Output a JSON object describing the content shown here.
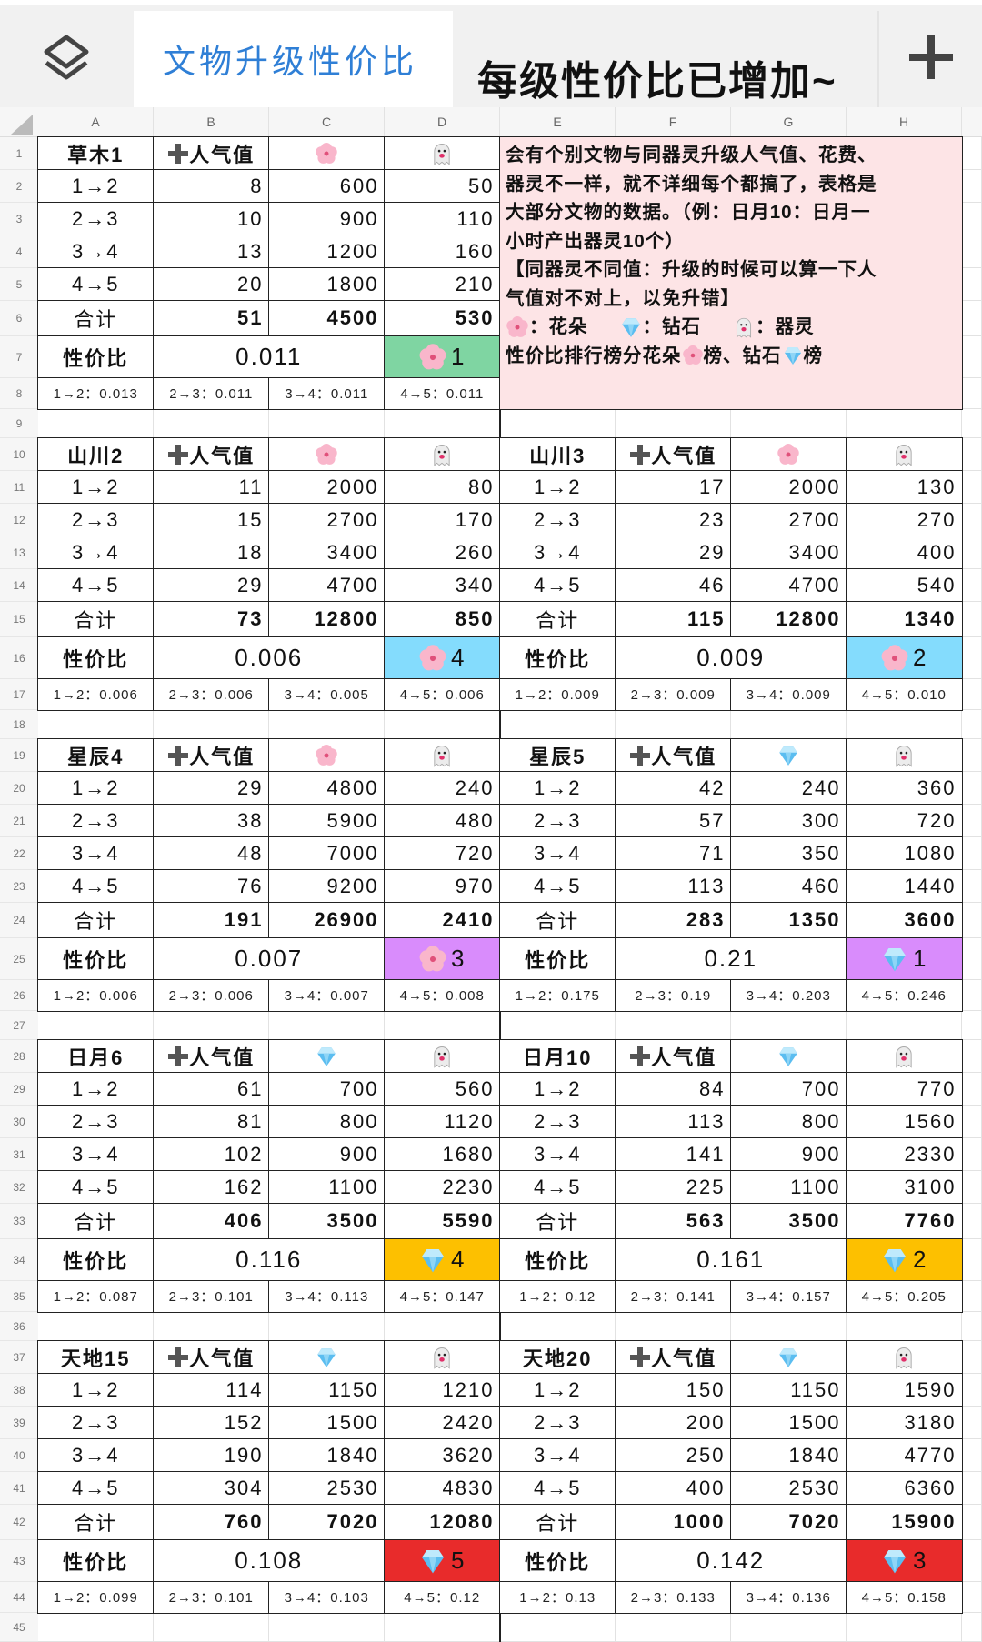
{
  "topbar": {
    "logo_icon": "layers-icon",
    "sheet_tab_title": "文物升级性价比",
    "overlay_note": "每级性价比已增加~",
    "add_icon": "plus-icon"
  },
  "columns": [
    "A",
    "B",
    "C",
    "D",
    "E",
    "F",
    "G",
    "H"
  ],
  "row_count": 45,
  "labels": {
    "popularity": "人气值",
    "popularity_icon": "plus-icon",
    "total": "合计",
    "ratio": "性价比",
    "spirit_icon": "ghost-icon"
  },
  "colors": {
    "note_bg": "#fde4e6",
    "title_blue": "#2f7fd6",
    "rank_green": "#7fd5a2",
    "rank_cyan": "#84dcfd",
    "rank_purple": "#d98cfc",
    "rank_orange": "#fdc000",
    "rank_red": "#e82b2b"
  },
  "note": {
    "lines": [
      "会有个别文物与同器灵升级人气值、花费、",
      "器灵不一样，就不详细每个都搞了，表格是",
      "大部分文物的数据。（例：日月10：日月一",
      "小时产出器灵10个）",
      "【同器灵不同值：升级的时候可以算一下人",
      "气值对不对上，以免升错】"
    ],
    "legend": {
      "flower": "：花朵",
      "diamond": "：钻石",
      "ghost": "：器灵"
    },
    "ranking": {
      "prefix": "性价比排行榜分花朵",
      "mid": "榜、钻石",
      "suffix": "榜"
    }
  },
  "blocks": [
    {
      "name": "草木1",
      "resource": "flower-icon",
      "rows": [
        {
          "level": "1→2",
          "pop": "8",
          "cost": "600",
          "spirit": "50"
        },
        {
          "level": "2→3",
          "pop": "10",
          "cost": "900",
          "spirit": "110"
        },
        {
          "level": "3→4",
          "pop": "13",
          "cost": "1200",
          "spirit": "160"
        },
        {
          "level": "4→5",
          "pop": "20",
          "cost": "1800",
          "spirit": "210"
        }
      ],
      "total": {
        "pop": "51",
        "cost": "4500",
        "spirit": "530"
      },
      "ratio": "0.011",
      "rank": {
        "icon": "flower-icon",
        "value": "1",
        "color": "#7fd5a2"
      },
      "per_level": [
        "1→2：0.013",
        "2→3：0.011",
        "3→4：0.011",
        "4→5：0.011"
      ]
    },
    {
      "name": "山川2",
      "resource": "flower-icon",
      "rows": [
        {
          "level": "1→2",
          "pop": "11",
          "cost": "2000",
          "spirit": "80"
        },
        {
          "level": "2→3",
          "pop": "15",
          "cost": "2700",
          "spirit": "170"
        },
        {
          "level": "3→4",
          "pop": "18",
          "cost": "3400",
          "spirit": "260"
        },
        {
          "level": "4→5",
          "pop": "29",
          "cost": "4700",
          "spirit": "340"
        }
      ],
      "total": {
        "pop": "73",
        "cost": "12800",
        "spirit": "850"
      },
      "ratio": "0.006",
      "rank": {
        "icon": "flower-icon",
        "value": "4",
        "color": "#84dcfd"
      },
      "per_level": [
        "1→2：0.006",
        "2→3：0.006",
        "3→4：0.005",
        "4→5：0.006"
      ]
    },
    {
      "name": "山川3",
      "resource": "flower-icon",
      "rows": [
        {
          "level": "1→2",
          "pop": "17",
          "cost": "2000",
          "spirit": "130"
        },
        {
          "level": "2→3",
          "pop": "23",
          "cost": "2700",
          "spirit": "270"
        },
        {
          "level": "3→4",
          "pop": "29",
          "cost": "3400",
          "spirit": "400"
        },
        {
          "level": "4→5",
          "pop": "46",
          "cost": "4700",
          "spirit": "540"
        }
      ],
      "total": {
        "pop": "115",
        "cost": "12800",
        "spirit": "1340"
      },
      "ratio": "0.009",
      "rank": {
        "icon": "flower-icon",
        "value": "2",
        "color": "#84dcfd"
      },
      "per_level": [
        "1→2：0.009",
        "2→3：0.009",
        "3→4：0.009",
        "4→5：0.010"
      ]
    },
    {
      "name": "星辰4",
      "resource": "flower-icon",
      "rows": [
        {
          "level": "1→2",
          "pop": "29",
          "cost": "4800",
          "spirit": "240"
        },
        {
          "level": "2→3",
          "pop": "38",
          "cost": "5900",
          "spirit": "480"
        },
        {
          "level": "3→4",
          "pop": "48",
          "cost": "7000",
          "spirit": "720"
        },
        {
          "level": "4→5",
          "pop": "76",
          "cost": "9200",
          "spirit": "970"
        }
      ],
      "total": {
        "pop": "191",
        "cost": "26900",
        "spirit": "2410"
      },
      "ratio": "0.007",
      "rank": {
        "icon": "flower-icon",
        "value": "3",
        "color": "#d98cfc"
      },
      "per_level": [
        "1→2：0.006",
        "2→3：0.006",
        "3→4：0.007",
        "4→5：0.008"
      ]
    },
    {
      "name": "星辰5",
      "resource": "diamond-icon",
      "rows": [
        {
          "level": "1→2",
          "pop": "42",
          "cost": "240",
          "spirit": "360"
        },
        {
          "level": "2→3",
          "pop": "57",
          "cost": "300",
          "spirit": "720"
        },
        {
          "level": "3→4",
          "pop": "71",
          "cost": "350",
          "spirit": "1080"
        },
        {
          "level": "4→5",
          "pop": "113",
          "cost": "460",
          "spirit": "1440"
        }
      ],
      "total": {
        "pop": "283",
        "cost": "1350",
        "spirit": "3600"
      },
      "ratio": "0.21",
      "rank": {
        "icon": "diamond-icon",
        "value": "1",
        "color": "#d98cfc"
      },
      "per_level": [
        "1→2：0.175",
        "2→3：0.19",
        "3→4：0.203",
        "4→5：0.246"
      ]
    },
    {
      "name": "日月6",
      "resource": "diamond-icon",
      "rows": [
        {
          "level": "1→2",
          "pop": "61",
          "cost": "700",
          "spirit": "560"
        },
        {
          "level": "2→3",
          "pop": "81",
          "cost": "800",
          "spirit": "1120"
        },
        {
          "level": "3→4",
          "pop": "102",
          "cost": "900",
          "spirit": "1680"
        },
        {
          "level": "4→5",
          "pop": "162",
          "cost": "1100",
          "spirit": "2230"
        }
      ],
      "total": {
        "pop": "406",
        "cost": "3500",
        "spirit": "5590"
      },
      "ratio": "0.116",
      "rank": {
        "icon": "diamond-icon",
        "value": "4",
        "color": "#fdc000"
      },
      "per_level": [
        "1→2：0.087",
        "2→3：0.101",
        "3→4：0.113",
        "4→5：0.147"
      ]
    },
    {
      "name": "日月10",
      "resource": "diamond-icon",
      "rows": [
        {
          "level": "1→2",
          "pop": "84",
          "cost": "700",
          "spirit": "770"
        },
        {
          "level": "2→3",
          "pop": "113",
          "cost": "800",
          "spirit": "1560"
        },
        {
          "level": "3→4",
          "pop": "141",
          "cost": "900",
          "spirit": "2330"
        },
        {
          "level": "4→5",
          "pop": "225",
          "cost": "1100",
          "spirit": "3100"
        }
      ],
      "total": {
        "pop": "563",
        "cost": "3500",
        "spirit": "7760"
      },
      "ratio": "0.161",
      "rank": {
        "icon": "diamond-icon",
        "value": "2",
        "color": "#fdc000"
      },
      "per_level": [
        "1→2：0.12",
        "2→3：0.141",
        "3→4：0.157",
        "4→5：0.205"
      ]
    },
    {
      "name": "天地15",
      "resource": "diamond-icon",
      "rows": [
        {
          "level": "1→2",
          "pop": "114",
          "cost": "1150",
          "spirit": "1210"
        },
        {
          "level": "2→3",
          "pop": "152",
          "cost": "1500",
          "spirit": "2420"
        },
        {
          "level": "3→4",
          "pop": "190",
          "cost": "1840",
          "spirit": "3620"
        },
        {
          "level": "4→5",
          "pop": "304",
          "cost": "2530",
          "spirit": "4830"
        }
      ],
      "total": {
        "pop": "760",
        "cost": "7020",
        "spirit": "12080"
      },
      "ratio": "0.108",
      "rank": {
        "icon": "diamond-icon",
        "value": "5",
        "color": "#e82b2b"
      },
      "per_level": [
        "1→2：0.099",
        "2→3：0.101",
        "3→4：0.103",
        "4→5：0.12"
      ]
    },
    {
      "name": "天地20",
      "resource": "diamond-icon",
      "rows": [
        {
          "level": "1→2",
          "pop": "150",
          "cost": "1150",
          "spirit": "1590"
        },
        {
          "level": "2→3",
          "pop": "200",
          "cost": "1500",
          "spirit": "3180"
        },
        {
          "level": "3→4",
          "pop": "250",
          "cost": "1840",
          "spirit": "4770"
        },
        {
          "level": "4→5",
          "pop": "400",
          "cost": "2530",
          "spirit": "6360"
        }
      ],
      "total": {
        "pop": "1000",
        "cost": "7020",
        "spirit": "15900"
      },
      "ratio": "0.142",
      "rank": {
        "icon": "diamond-icon",
        "value": "3",
        "color": "#e82b2b"
      },
      "per_level": [
        "1→2：0.13",
        "2→3：0.133",
        "3→4：0.136",
        "4→5：0.158"
      ]
    }
  ]
}
